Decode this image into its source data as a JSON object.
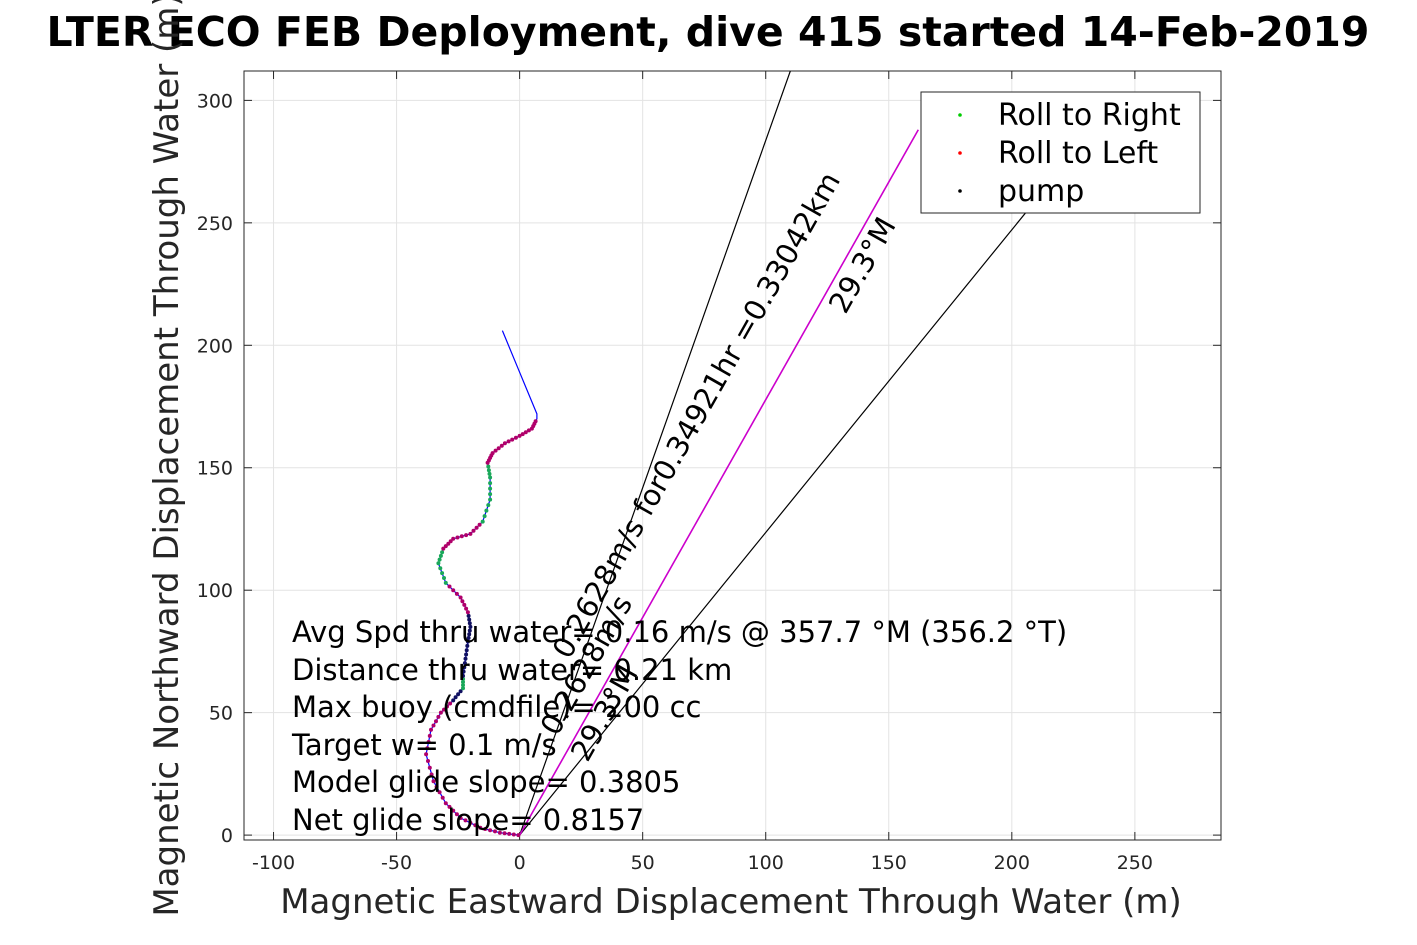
{
  "chart_data": {
    "type": "line",
    "title": "LTER ECO FEB Deployment, dive 415 started 14-Feb-2019",
    "xlabel": "Magnetic Eastward Displacement Through Water (m)",
    "ylabel": "Magnetic Northward Displacement Through Water (m)",
    "xlim": [
      -112,
      285
    ],
    "ylim": [
      -2,
      312
    ],
    "xticks": [
      -100,
      -50,
      0,
      50,
      100,
      150,
      200,
      250
    ],
    "yticks": [
      0,
      50,
      100,
      150,
      200,
      250,
      300
    ],
    "grid": true,
    "legend_position": "top-right",
    "legend": [
      {
        "label": "Roll to Right",
        "color": "#00cc00"
      },
      {
        "label": "Roll to Left",
        "color": "#ff0000"
      },
      {
        "label": "pump",
        "color": "#000000"
      }
    ],
    "colors": {
      "track": "#0000ff",
      "marker": "#800080",
      "current": "#cc00cc",
      "cone": "#000000"
    },
    "track": {
      "x": [
        -0.5,
        -8,
        -16,
        -24,
        -30,
        -35,
        -38,
        -36,
        -32,
        -27,
        -23,
        -23,
        -22,
        -21,
        -20,
        -21,
        -24,
        -30,
        -33,
        -31,
        -27,
        -20,
        -15,
        -12,
        -12,
        -13,
        -11,
        -6,
        0,
        5,
        7,
        7,
        0,
        -7
      ],
      "y": [
        0,
        1,
        3,
        7,
        13,
        22,
        33,
        43,
        50,
        55,
        60,
        65,
        72,
        79,
        85,
        91,
        97,
        103,
        111,
        117,
        121,
        123,
        128,
        137,
        146,
        152,
        156,
        160,
        163,
        166,
        170,
        172,
        189,
        206
      ]
    },
    "direction_lines": [
      {
        "x": [
          0,
          110
        ],
        "y": [
          0,
          312
        ]
      },
      {
        "x": [
          0,
          1040
        ],
        "y": [
          0,
          1840
        ]
      }
    ],
    "current_vector": {
      "x": [
        0,
        162
      ],
      "y": [
        0,
        288
      ]
    },
    "cone_lines": [
      {
        "x": [
          0,
          110
        ],
        "y": [
          0,
          312
        ]
      },
      {
        "x": [
          0,
          212
        ],
        "y": [
          0,
          262
        ]
      }
    ],
    "current_labels": {
      "line1": "0.2628m/s for0.34921hr =0.33042km",
      "line2": "29.3°M",
      "line3": "0.2628m/s",
      "line4": "29.3°M"
    },
    "annotations": [
      "Avg Spd thru water= 0.16 m/s @ 357.7 °M (356.2 °T)",
      "Distance thru water= 0.21 km",
      "Max buoy (cmdfile)= 200 cc",
      "Target w= 0.1 m/s",
      "Model glide slope= 0.3805",
      "Net glide slope= 0.8157"
    ]
  }
}
